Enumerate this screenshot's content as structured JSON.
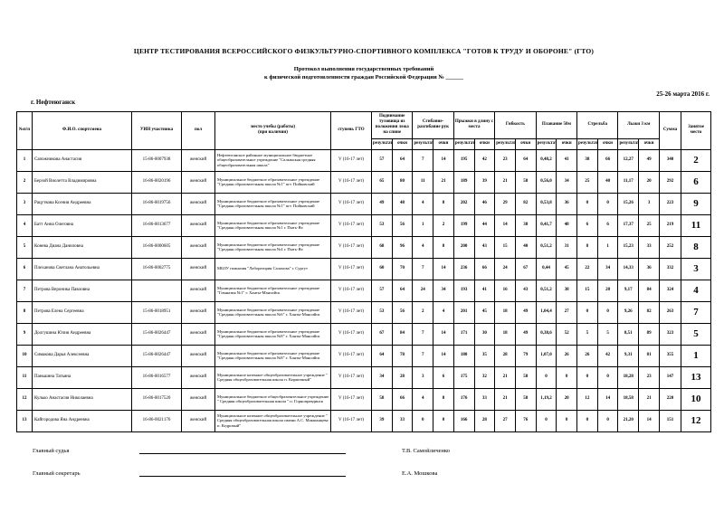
{
  "title": "ЦЕНТР ТЕСТИРОВАНИЯ ВСЕРОССИЙСКОГО ФИЗКУЛЬТУРНО-СПОРТИВНОГО КОМПЛЕКСА \"ГОТОВ К ТРУДУ И ОБОРОНЕ\" (ГТО)",
  "subtitle": "Протокол выполнения государственных требований\nк физической подготовленности граждан Российской Федерации №  ______",
  "date": "25-26 марта 2016 г.",
  "city": "г. Нефтеюганск",
  "table": {
    "simple_headers": [
      "№п/п",
      "Ф.И.О. спортсмена",
      "УИН участника",
      "пол",
      "место учебы (работы)\n(при наличии)",
      "ступень ГТО"
    ],
    "test_headers": [
      "Поднимание туловища из положения лежа на спине",
      "Сгибание-разгибание рук",
      "Прыжки в длину с места",
      "Гибкость",
      "Плавание 50м",
      "Стрельба",
      "Лыжи 3 км"
    ],
    "sub_result": "результат",
    "sub_points": "очки",
    "sum_header": "Сумма",
    "place_header": "Занятое место",
    "col_keys": [
      "num",
      "athlete-name",
      "uin",
      "gender",
      "school",
      "gto-stage",
      "situps-result",
      "situps-points",
      "pushups-result",
      "pushups-points",
      "longjump-result",
      "longjump-points",
      "flexibility-result",
      "flexibility-points",
      "swimming-result",
      "swimming-points",
      "shooting-result",
      "shooting-points",
      "skiing-result",
      "skiing-points",
      "sum",
      "place"
    ],
    "rows": [
      [
        "1",
        "Сапожникова Анастасия",
        "15-86-0007938",
        "женский",
        "Нефтеюганское районное муниципальное бюджетное общеобразовательное учреждение \"Салымская средняя общеобразовательная школа\"",
        "V (16-17 лет)",
        "57",
        "64",
        "7",
        "14",
        "195",
        "42",
        "23",
        "64",
        "0,48,2",
        "41",
        "38",
        "66",
        "12,27",
        "49",
        "340",
        "2"
      ],
      [
        "2",
        "Берзой Виолетта Владимировна",
        "16-86-0020196",
        "женский",
        "Муниципальное бюджетное образовательное учреждение \"Средняя образовательная школа №1\" пгт. Пойковский",
        "V (16-17 лет)",
        "65",
        "80",
        "11",
        "21",
        "189",
        "39",
        "21",
        "58",
        "0,56,0",
        "34",
        "25",
        "40",
        "11,17",
        "20",
        "292",
        "6"
      ],
      [
        "3",
        "Рацуткова Ксения Андреевна",
        "16-86-0019756",
        "женский",
        "Муниципальное бюджетное образовательное учреждение \"Средняя образовательная школа №1\" пгт. Пойковский",
        "V (16-17 лет)",
        "49",
        "48",
        "4",
        "8",
        "202",
        "46",
        "29",
        "82",
        "0,53,8",
        "36",
        "0",
        "0",
        "15,26",
        "3",
        "223",
        "9"
      ],
      [
        "4",
        "Батт Анна Олеговна",
        "16-86-0013677",
        "женский",
        "Муниципальное бюджетное образовательное учреждение \"Средняя образовательная школа №1 г. Пыть-Ях",
        "V (16-17 лет)",
        "53",
        "56",
        "1",
        "2",
        "199",
        "44",
        "14",
        "38",
        "0,41,7",
        "48",
        "6",
        "6",
        "17,37",
        "25",
        "219",
        "11"
      ],
      [
        "5",
        "Конева Диана Даниловна",
        "16-86-0000605",
        "женский",
        "Муниципальное бюджетное образовательное учреждение \"Средняя образовательная школа №4 г. Пыть-Ях",
        "V (16-17 лет)",
        "68",
        "96",
        "4",
        "8",
        "200",
        "43",
        "15",
        "40",
        "0,51,2",
        "31",
        "8",
        "1",
        "15,23",
        "33",
        "252",
        "8"
      ],
      [
        "6",
        "Плеханова Светлана Анатольевна",
        "16-86-0002775",
        "женский",
        "МБОУ гимназия \"Лаборатория Салахова\" г. Сургут",
        "V (16-17 лет)",
        "60",
        "70",
        "7",
        "14",
        "236",
        "66",
        "24",
        "67",
        "0,44",
        "45",
        "22",
        "34",
        "14,33",
        "36",
        "332",
        "3"
      ],
      [
        "7",
        "Петрова Вероника Павловна",
        "",
        "женский",
        "Муниципальное бюджетное образовательное учреждение \"Гимназия №1\" г. Ханты-Мансийск",
        "V (16-17 лет)",
        "57",
        "64",
        "24",
        "34",
        "193",
        "41",
        "16",
        "43",
        "0,51,2",
        "38",
        "15",
        "20",
        "9,17",
        "84",
        "324",
        "4"
      ],
      [
        "8",
        "Петрова Елена Сергеевна",
        "15-86-0018951",
        "женский",
        "Муниципальное бюджетное образовательное учреждение \"Средняя образовательная школа №6\" г. Ханты-Мансийск",
        "V (16-17 лет)",
        "53",
        "56",
        "2",
        "4",
        "201",
        "45",
        "18",
        "49",
        "1,04,4",
        "27",
        "0",
        "0",
        "9,26",
        "82",
        "263",
        "7"
      ],
      [
        "9",
        "Долгушина Юлия Андреевна",
        "15-86-0026447",
        "женский",
        "Муниципальное бюджетное образовательное учреждение \"Средняя образовательная школа №8\" г. Ханты-Мансийск",
        "V (16-17 лет)",
        "67",
        "84",
        "7",
        "14",
        "171",
        "30",
        "18",
        "49",
        "0,38,6",
        "52",
        "5",
        "5",
        "8,51",
        "89",
        "323",
        "5"
      ],
      [
        "10",
        "Симакова Дарья Алексеевна",
        "15-86-0026447",
        "женский",
        "Муниципальное бюджетное образовательное учреждение \"Средняя образовательная школа №8\" г. Ханты-Мансийск",
        "V (16-17 лет)",
        "64",
        "78",
        "7",
        "14",
        "180",
        "35",
        "28",
        "79",
        "1,07,0",
        "26",
        "26",
        "42",
        "9,31",
        "81",
        "355",
        "1"
      ],
      [
        "11",
        "Паньшина Татьяна",
        "16-86-0016577",
        "женский",
        "Муниципальное казенное общеобразовательное учреждение \" Средняя общеобразовательная школа п. Кирпичный\"",
        "V (16-17 лет)",
        "34",
        "28",
        "3",
        "6",
        "175",
        "32",
        "21",
        "58",
        "0",
        "0",
        "0",
        "0",
        "18,28",
        "23",
        "147",
        "13"
      ],
      [
        "12",
        "Кулько Анастасия Николаевна",
        "16-86-0017520",
        "женский",
        "Муниципальное бюджетное общеобразовательное учреждение \" Средняя общеобразовательная школа \" п. Горноправдинск",
        "V (16-17 лет)",
        "58",
        "66",
        "4",
        "8",
        "176",
        "33",
        "21",
        "58",
        "1,19,2",
        "20",
        "12",
        "14",
        "18,58",
        "21",
        "220",
        "10"
      ],
      [
        "13",
        "Кайгородова Яна Андреевна",
        "16-86-0021176",
        "женский",
        "Муниципальное казенное общеобразовательное учреждение \" Средняя общеобразовательная школа имени А.С. Макшанцева п. Кедровый\"",
        "V (16-17 лет)",
        "39",
        "33",
        "0",
        "0",
        "166",
        "28",
        "27",
        "76",
        "0",
        "0",
        "0",
        "0",
        "21,20",
        "14",
        "151",
        "12"
      ]
    ]
  },
  "footer": {
    "judge_label": "Главный судья",
    "judge_name": "Т.В. Самойличенко",
    "secretary_label": "Главный секретарь",
    "secretary_name": "Е.А. Мошкова"
  }
}
